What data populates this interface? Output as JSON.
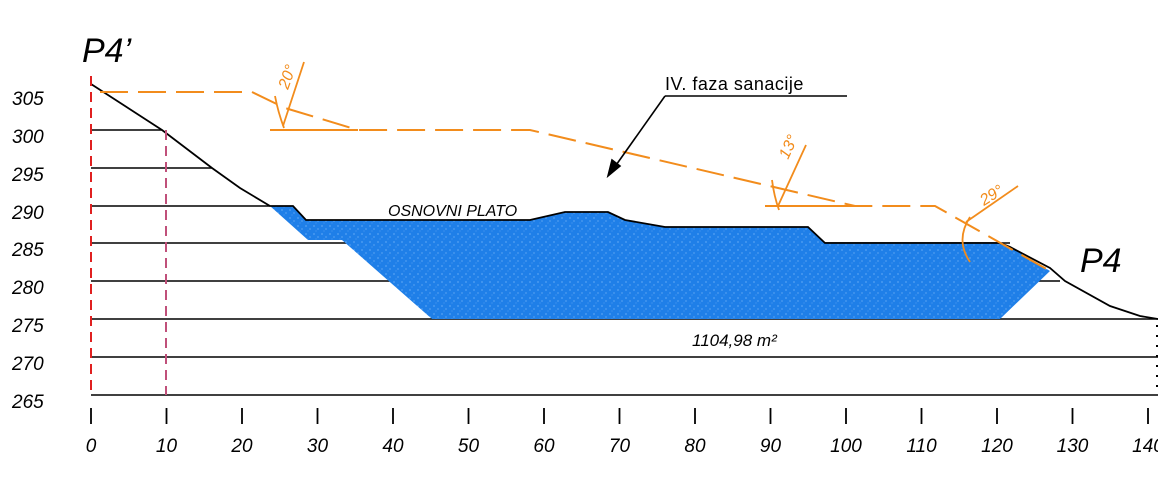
{
  "section": {
    "start_label": "P4’",
    "end_label": "P4",
    "phase_label": "IV. faza sanacije",
    "plateau_label": "OSNOVNI PLATO",
    "area_label": "1104,98 m²",
    "slope_angles": [
      "20°",
      "13°",
      "29°"
    ]
  },
  "axes": {
    "elevation_ticks": [
      "305",
      "300",
      "295",
      "290",
      "285",
      "280",
      "275",
      "270",
      "265"
    ],
    "distance_ticks": [
      "0",
      "10",
      "20",
      "30",
      "40",
      "50",
      "60",
      "70",
      "80",
      "90",
      "100",
      "110",
      "120",
      "130",
      "140"
    ]
  },
  "colors": {
    "fill": "#1f7fe8",
    "design_line": "#f28c1c",
    "reference_line": "#e02020",
    "reference_line_2": "#c0507a",
    "terrain": "#000000"
  }
}
